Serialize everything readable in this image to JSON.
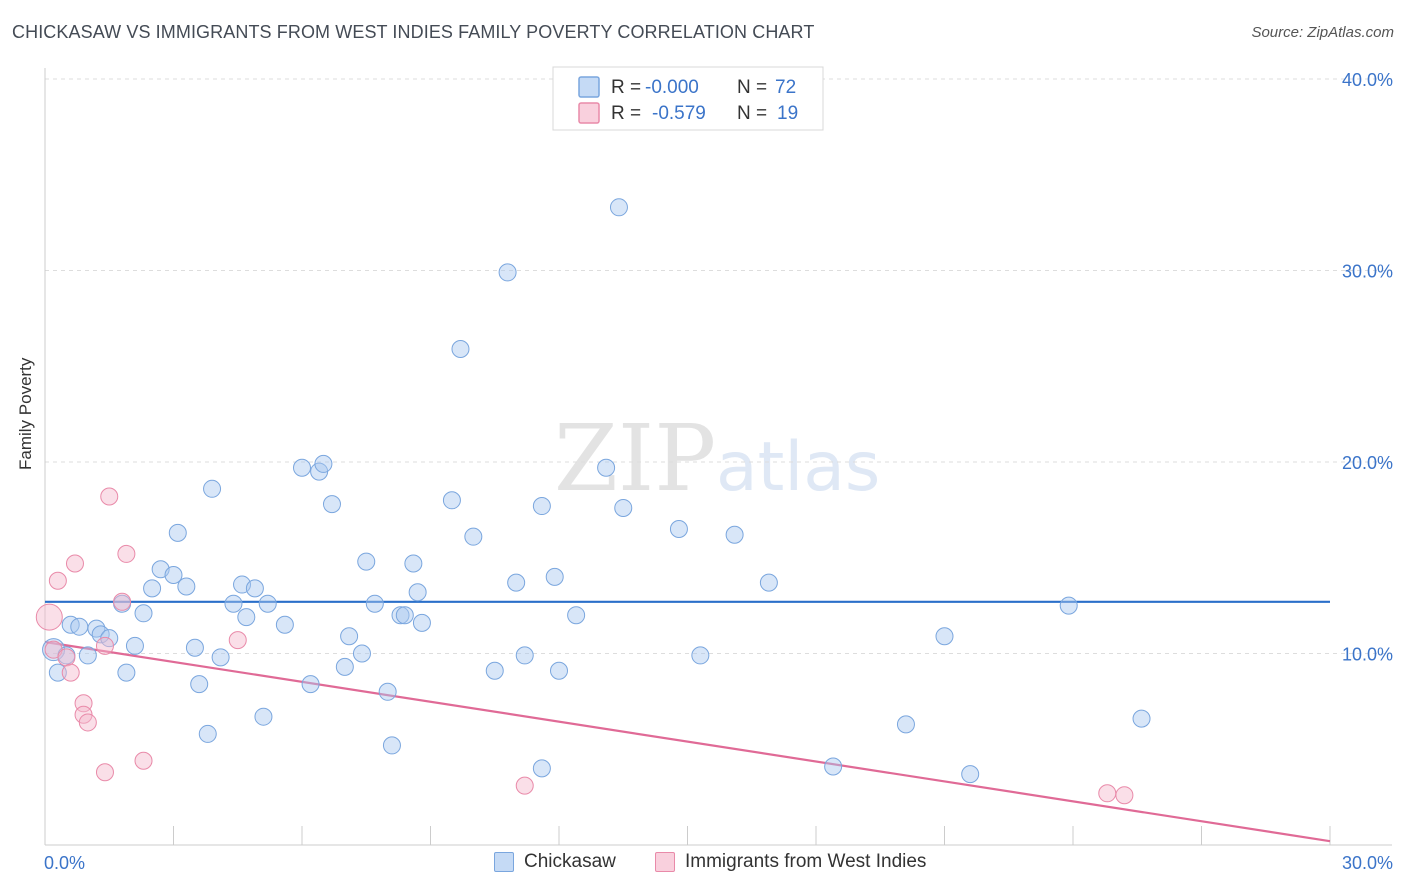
{
  "title": "CHICKASAW VS IMMIGRANTS FROM WEST INDIES FAMILY POVERTY CORRELATION CHART",
  "source": "Source: ZipAtlas.com",
  "watermark": {
    "zip": "ZIP",
    "atlas": "atlas"
  },
  "colors": {
    "blue_fill": "#a9c8f0",
    "blue_stroke": "#7aa6de",
    "blue_line": "#2a6fc9",
    "pink_fill": "#f5b9cc",
    "pink_stroke": "#e98aa9",
    "pink_line": "#e06a96",
    "axis_text": "#3b74c9",
    "grid": "#dddddd"
  },
  "legend_top": {
    "rows": [
      {
        "r_label": "R =",
        "r_value": "-0.000",
        "n_label": "N =",
        "n_value": "72",
        "color": "blue"
      },
      {
        "r_label": "R =",
        "r_value": "-0.579",
        "n_label": "N =",
        "n_value": "19",
        "color": "pink"
      }
    ]
  },
  "legend_bottom": [
    {
      "label": "Chickasaw",
      "color": "blue"
    },
    {
      "label": "Immigrants from West Indies",
      "color": "pink"
    }
  ],
  "chart_data": {
    "type": "scatter",
    "title": "CHICKASAW VS IMMIGRANTS FROM WEST INDIES FAMILY POVERTY CORRELATION CHART",
    "xlabel": "",
    "ylabel": "Family Poverty",
    "xlim": [
      0,
      30
    ],
    "ylim": [
      0,
      40
    ],
    "x_tick_labels": [
      "0.0%",
      "30.0%"
    ],
    "y_ticks": [
      10,
      20,
      30,
      40
    ],
    "y_tick_labels": [
      "10.0%",
      "20.0%",
      "30.0%",
      "40.0%"
    ],
    "grid": true,
    "legend_position": "top-center",
    "series": [
      {
        "name": "Chickasaw",
        "color": "blue",
        "trend": {
          "x": [
            0,
            30
          ],
          "y": [
            12.7,
            12.7
          ]
        },
        "points": [
          [
            0.2,
            10.2
          ],
          [
            0.3,
            9.0
          ],
          [
            0.5,
            9.9
          ],
          [
            0.6,
            11.5
          ],
          [
            0.8,
            11.4
          ],
          [
            1.0,
            9.9
          ],
          [
            1.2,
            11.3
          ],
          [
            1.3,
            11.0
          ],
          [
            1.5,
            10.8
          ],
          [
            1.9,
            9.0
          ],
          [
            1.8,
            12.6
          ],
          [
            2.1,
            10.4
          ],
          [
            2.3,
            12.1
          ],
          [
            2.5,
            13.4
          ],
          [
            2.7,
            14.4
          ],
          [
            3.0,
            14.1
          ],
          [
            3.1,
            16.3
          ],
          [
            3.3,
            13.5
          ],
          [
            3.5,
            10.3
          ],
          [
            3.6,
            8.4
          ],
          [
            3.8,
            5.8
          ],
          [
            3.9,
            18.6
          ],
          [
            4.1,
            9.8
          ],
          [
            4.4,
            12.6
          ],
          [
            4.6,
            13.6
          ],
          [
            4.7,
            11.9
          ],
          [
            4.9,
            13.4
          ],
          [
            5.1,
            6.7
          ],
          [
            5.2,
            12.6
          ],
          [
            5.6,
            11.5
          ],
          [
            6.0,
            19.7
          ],
          [
            6.2,
            8.4
          ],
          [
            6.4,
            19.5
          ],
          [
            6.5,
            19.9
          ],
          [
            6.7,
            17.8
          ],
          [
            7.0,
            9.3
          ],
          [
            7.1,
            10.9
          ],
          [
            7.4,
            10.0
          ],
          [
            7.5,
            14.8
          ],
          [
            7.7,
            12.6
          ],
          [
            8.0,
            8.0
          ],
          [
            8.1,
            5.2
          ],
          [
            8.3,
            12.0
          ],
          [
            8.4,
            12.0
          ],
          [
            8.7,
            13.2
          ],
          [
            8.6,
            14.7
          ],
          [
            8.8,
            11.6
          ],
          [
            9.5,
            18.0
          ],
          [
            9.7,
            25.9
          ],
          [
            10.0,
            16.1
          ],
          [
            10.5,
            9.1
          ],
          [
            10.8,
            29.9
          ],
          [
            11.0,
            13.7
          ],
          [
            11.2,
            9.9
          ],
          [
            11.6,
            17.7
          ],
          [
            11.6,
            4.0
          ],
          [
            11.9,
            14.0
          ],
          [
            12.0,
            9.1
          ],
          [
            12.4,
            12.0
          ],
          [
            13.1,
            19.7
          ],
          [
            13.4,
            33.3
          ],
          [
            13.5,
            17.6
          ],
          [
            14.8,
            16.5
          ],
          [
            15.3,
            9.9
          ],
          [
            16.1,
            16.2
          ],
          [
            16.9,
            13.7
          ],
          [
            18.4,
            4.1
          ],
          [
            20.1,
            6.3
          ],
          [
            21.0,
            10.9
          ],
          [
            21.6,
            3.7
          ],
          [
            23.9,
            12.5
          ],
          [
            25.6,
            6.6
          ]
        ]
      },
      {
        "name": "Immigrants from West Indies",
        "color": "pink",
        "trend": {
          "x": [
            0,
            30
          ],
          "y": [
            10.6,
            0.2
          ]
        },
        "points": [
          [
            0.1,
            11.9
          ],
          [
            0.2,
            10.2
          ],
          [
            0.3,
            13.8
          ],
          [
            0.5,
            9.8
          ],
          [
            0.6,
            9.0
          ],
          [
            0.7,
            14.7
          ],
          [
            0.9,
            7.4
          ],
          [
            0.9,
            6.8
          ],
          [
            1.0,
            6.4
          ],
          [
            1.4,
            10.4
          ],
          [
            1.4,
            3.8
          ],
          [
            1.5,
            18.2
          ],
          [
            1.8,
            12.7
          ],
          [
            1.9,
            15.2
          ],
          [
            2.3,
            4.4
          ],
          [
            4.5,
            10.7
          ],
          [
            11.2,
            3.1
          ],
          [
            24.8,
            2.7
          ],
          [
            25.2,
            2.6
          ]
        ]
      }
    ]
  }
}
